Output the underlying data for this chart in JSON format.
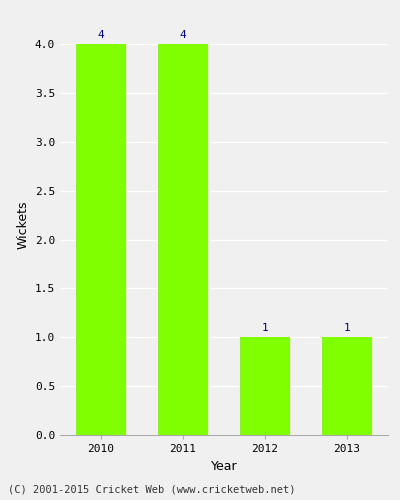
{
  "categories": [
    "2010",
    "2011",
    "2012",
    "2013"
  ],
  "values": [
    4,
    4,
    1,
    1
  ],
  "bar_color": "#7FFF00",
  "bar_edge_color": "#7FFF00",
  "xlabel": "Year",
  "ylabel": "Wickets",
  "ylim": [
    0,
    4.3
  ],
  "yticks": [
    0.0,
    0.5,
    1.0,
    1.5,
    2.0,
    2.5,
    3.0,
    3.5,
    4.0
  ],
  "label_color": "#00008B",
  "label_fontsize": 8,
  "axis_label_fontsize": 9,
  "tick_fontsize": 8,
  "footer_text": "(C) 2001-2015 Cricket Web (www.cricketweb.net)",
  "footer_fontsize": 7.5,
  "background_color": "#f0f0f0",
  "grid_color": "#ffffff",
  "bar_width": 0.6
}
